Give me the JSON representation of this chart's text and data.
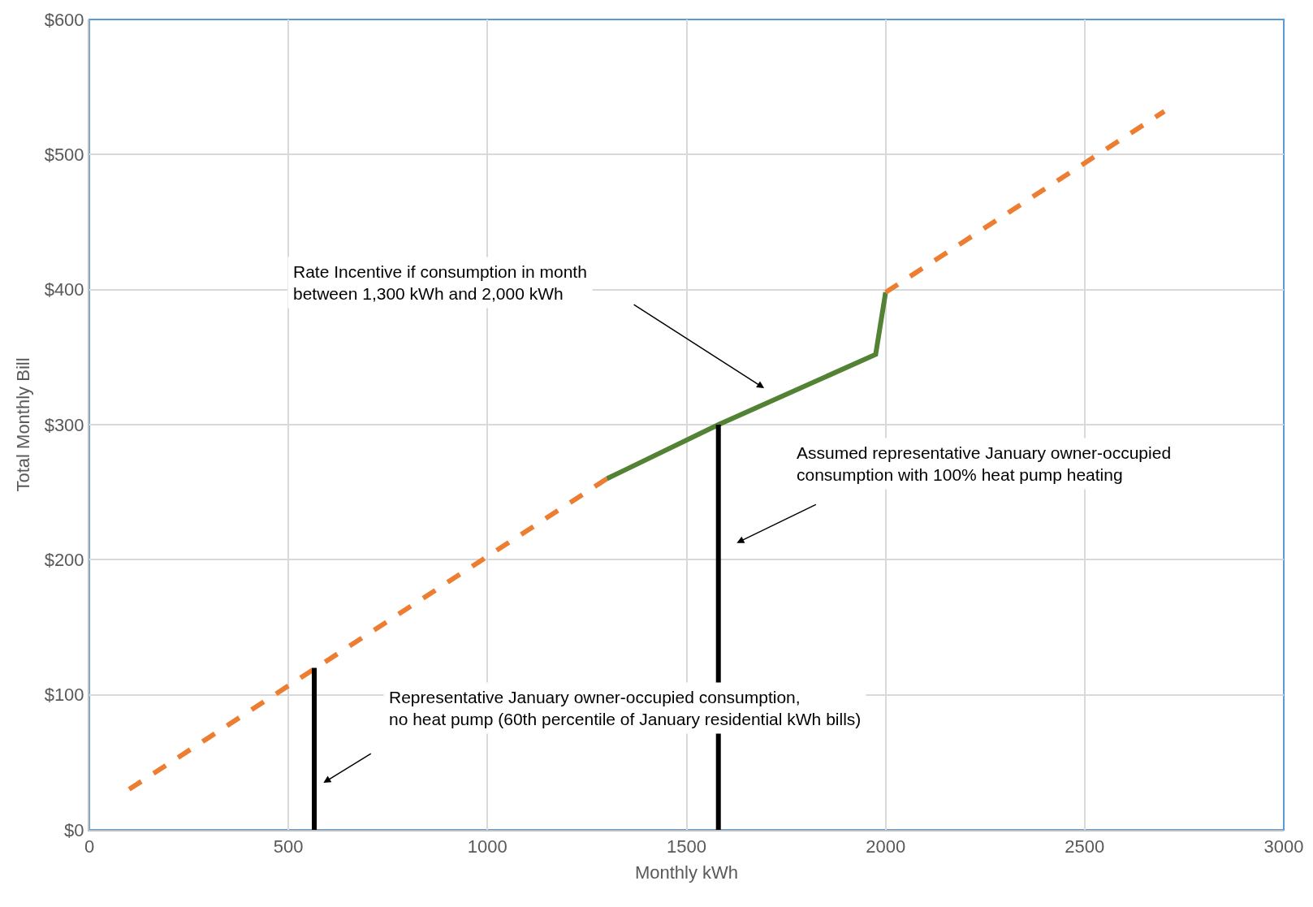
{
  "chart_data": {
    "type": "line",
    "xlabel": "Monthly kWh",
    "ylabel": "Total Monthly Bill",
    "series": [
      {
        "color": "#ed7d31",
        "line_style": "dashed",
        "x": [
          1300,
          100
        ],
        "values": [
          260,
          30
        ]
      },
      {
        "color": "#548235",
        "line_style": "solid",
        "x": [
          1300,
          1580,
          1975,
          2000
        ],
        "values": [
          260,
          300,
          352,
          398
        ]
      },
      {
        "color": "#ed7d31",
        "line_style": "dashed",
        "x": [
          2000,
          2700
        ],
        "values": [
          398,
          532
        ]
      },
      {
        "color": "#000000",
        "line_style": "solid",
        "x": [
          565,
          565
        ],
        "values": [
          0,
          120
        ]
      },
      {
        "color": "#000000",
        "line_style": "solid",
        "x": [
          1580,
          1580
        ],
        "values": [
          0,
          300
        ]
      }
    ],
    "xlim": [
      0,
      3000
    ],
    "xticks": [
      0,
      500,
      1000,
      1500,
      2000,
      2500,
      3000
    ],
    "ylim": [
      0,
      600
    ],
    "yticks": [
      {
        "value": 0,
        "label": "$0"
      },
      {
        "value": 100,
        "label": "$100"
      },
      {
        "value": 200,
        "label": "$200"
      },
      {
        "value": 300,
        "label": "$300"
      },
      {
        "value": 400,
        "label": "$400"
      },
      {
        "value": 500,
        "label": "$500"
      },
      {
        "value": 600,
        "label": "$600"
      }
    ],
    "grid": true,
    "annotations": [
      "Rate Incentive if consumption in month\nbetween 1,300 kWh and 2,000 kWh",
      "Assumed representative January owner-occupied\nconsumption with 100% heat pump heating",
      "Representative January owner-occupied consumption,\nno heat pump (60th percentile of January residential kWh bills)"
    ]
  }
}
